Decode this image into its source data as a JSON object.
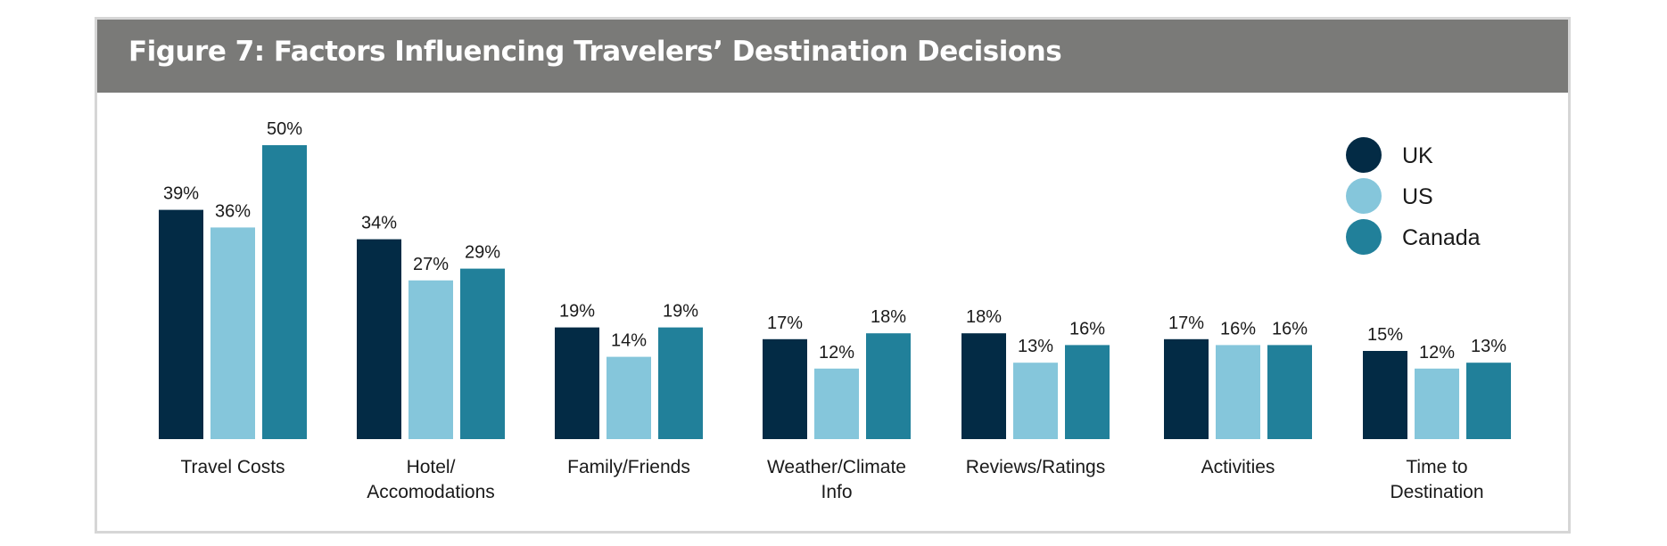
{
  "chart_data": {
    "type": "bar",
    "title": "Figure 7: Factors Influencing Travelers’ Destination Decisions",
    "xlabel": "",
    "ylabel": "",
    "ylim": [
      0,
      50
    ],
    "value_suffix": "%",
    "grid": false,
    "legend_position": "top-right",
    "categories": [
      [
        "Travel Costs"
      ],
      [
        "Hotel/",
        "Accomodations"
      ],
      [
        "Family/Friends"
      ],
      [
        "Weather/Climate",
        "Info"
      ],
      [
        "Reviews/Ratings"
      ],
      [
        "Activities"
      ],
      [
        "Time to",
        "Destination"
      ]
    ],
    "series": [
      {
        "name": "UK",
        "color": "#032b45",
        "values": [
          39,
          34,
          19,
          17,
          18,
          17,
          15
        ]
      },
      {
        "name": "US",
        "color": "#85c6db",
        "values": [
          36,
          27,
          14,
          12,
          13,
          16,
          12
        ]
      },
      {
        "name": "Canada",
        "color": "#21809a",
        "values": [
          50,
          29,
          19,
          18,
          16,
          16,
          13
        ]
      }
    ]
  }
}
